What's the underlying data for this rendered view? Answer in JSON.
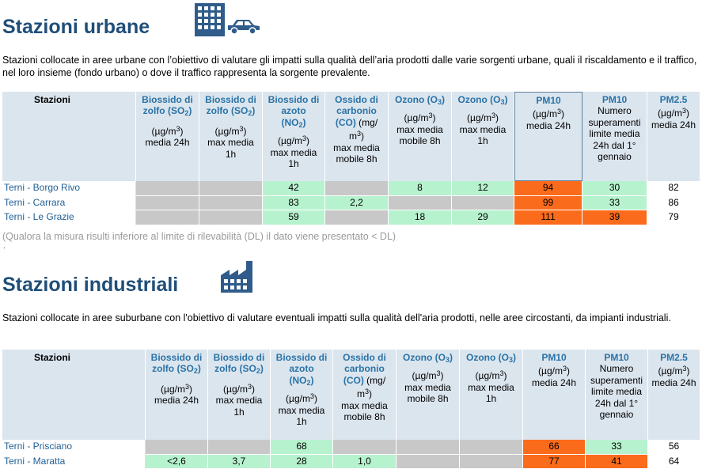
{
  "urban": {
    "title": "Stazioni urbane",
    "description": "Stazioni collocate in aree urbane con l’obiettivo di valutare gli impatti sulla qualità dell’aria prodotti dalle varie sorgenti urbane, quali il riscaldamento e il traffico, nel loro insieme (fondo urbano) o dove il traffico rappresenta la sorgente prevalente.",
    "icon": "city-traffic-icon",
    "note": "(Qualora la misura risulti inferiore al limite di rilevabilità (DL) il dato viene presentato < DL)",
    "dot": ".",
    "header": {
      "stations": "Stazioni",
      "so2_24h_name": "Biossido di zolfo",
      "so2_24h_formula": "(SO",
      "so2_24h_unit": "media 24h",
      "so2_1h_name": "Biossido di zolfo",
      "so2_1h_formula": "(SO",
      "so2_1h_unit": "max media 1h",
      "no2_name": "Biossido di azoto",
      "no2_formula": "(NO",
      "no2_unit": "max media 1h",
      "co_name": "Ossido di carbonio",
      "co_formula": "(CO)",
      "co_unit": "max media mobile 8h",
      "o3_8h_name": "Ozono (O",
      "o3_8h_unit": "max media mobile 8h",
      "o3_1h_name": "Ozono (O",
      "o3_1h_unit": "max media 1h",
      "pm10_name": "PM10",
      "pm10_unit": "media 24h",
      "pm10n_name": "PM10",
      "pm10n_unit": "Numero superamenti limite media 24h dal 1° gennaio",
      "pm25_name": "PM2.5",
      "pm25_unit": "media 24h"
    },
    "rows": [
      {
        "name": "Terni - Borgo Rivo",
        "so2_24h": "",
        "so2_1h": "",
        "no2": "42",
        "co": "",
        "o3_8h": "8",
        "o3_1h": "12",
        "pm10": "94",
        "pm10n": "30",
        "pm25": "82"
      },
      {
        "name": "Terni - Carrara",
        "so2_24h": "",
        "so2_1h": "",
        "no2": "83",
        "co": "2,2",
        "o3_8h": "",
        "o3_1h": "",
        "pm10": "99",
        "pm10n": "33",
        "pm25": "86"
      },
      {
        "name": "Terni - Le Grazie",
        "so2_24h": "",
        "so2_1h": "",
        "no2": "59",
        "co": "",
        "o3_8h": "18",
        "o3_1h": "29",
        "pm10": "111",
        "pm10n": "39",
        "pm25": "79"
      }
    ]
  },
  "industrial": {
    "title": "Stazioni industriali",
    "description": "Stazioni collocate in aree suburbane con l'obiettivo di valutare eventuali impatti sulla qualità dell'aria prodotti, nelle aree circostanti, da impianti industriali.",
    "icon": "factory-icon",
    "rows": [
      {
        "name": "Terni - Prisciano",
        "so2_24h": "",
        "so2_1h": "",
        "no2": "68",
        "co": "",
        "o3_8h": "",
        "o3_1h": "",
        "pm10": "66",
        "pm10n": "33",
        "pm25": "56"
      },
      {
        "name": "Terni - Maratta",
        "so2_24h": "<2,6",
        "so2_1h": "3,7",
        "no2": "28",
        "co": "1,0",
        "o3_8h": "",
        "o3_1h": "",
        "pm10": "77",
        "pm10n": "41",
        "pm25": "64"
      }
    ]
  },
  "common": {
    "sub2": "2",
    "sub3": "3",
    "sup3": "3",
    "ugm3_open": "(µg/m",
    "close": ")",
    "mg_open": "(mg/ m",
    "colors": {
      "title": "#1f4e79",
      "header_name": "#2a73a6",
      "header_bg": "#dbe5ee",
      "gray": "#c8c8c8",
      "green": "#b7f2cf",
      "orange": "#fb6b1c",
      "station": "#1f5f94"
    }
  }
}
